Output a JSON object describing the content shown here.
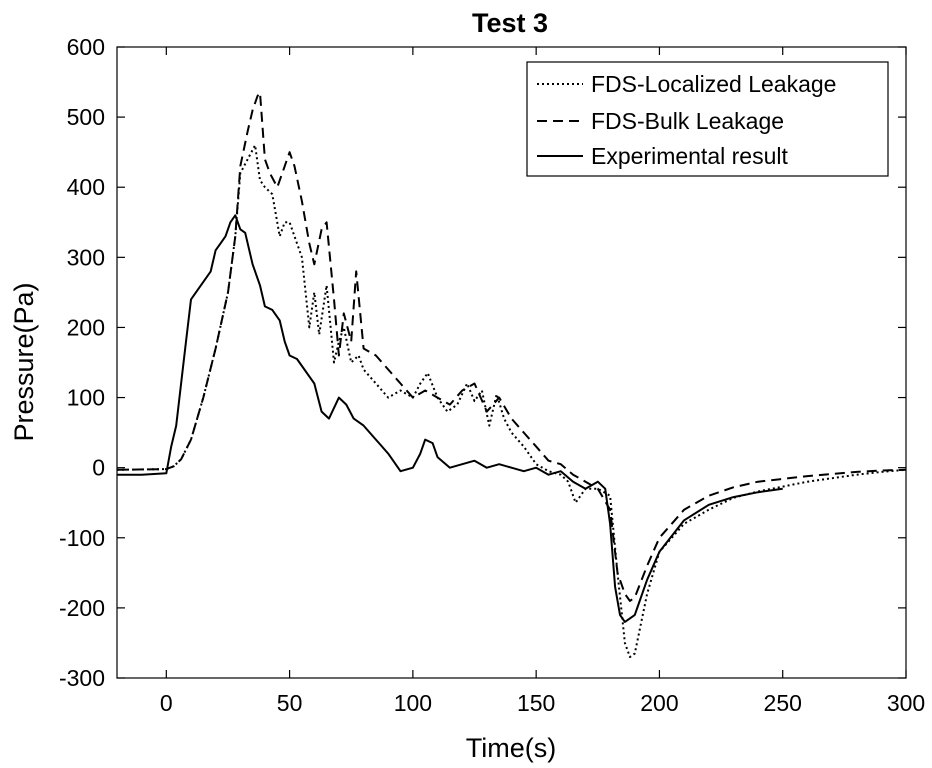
{
  "chart_data": {
    "type": "line",
    "title": "Test 3",
    "xlabel": "Time(s)",
    "ylabel": "Pressure(Pa)",
    "xlim": [
      -20,
      300
    ],
    "ylim": [
      -300,
      600
    ],
    "xticks": [
      0,
      50,
      100,
      150,
      200,
      250,
      300
    ],
    "yticks": [
      -300,
      -200,
      -100,
      0,
      100,
      200,
      300,
      400,
      500,
      600
    ],
    "grid": false,
    "legend_position": "top-right",
    "series": [
      {
        "name": "FDS-Localized Leakage",
        "style": "dotted",
        "color": "#000000",
        "x": [
          -20,
          0,
          3,
          6,
          10,
          15,
          20,
          25,
          28,
          30,
          33,
          36,
          38,
          40,
          43,
          46,
          48,
          50,
          52,
          55,
          58,
          60,
          62,
          65,
          68,
          70,
          72,
          75,
          78,
          80,
          85,
          90,
          95,
          100,
          103,
          106,
          110,
          114,
          118,
          122,
          125,
          128,
          131,
          134,
          137,
          140,
          145,
          150,
          155,
          160,
          163,
          166,
          170,
          175,
          180,
          183,
          186,
          188,
          190,
          195,
          200,
          210,
          220,
          230,
          240,
          250,
          260,
          270,
          280,
          290,
          300
        ],
        "y": [
          -3,
          -2,
          2,
          12,
          40,
          100,
          170,
          250,
          330,
          420,
          440,
          460,
          410,
          400,
          390,
          330,
          350,
          350,
          330,
          300,
          200,
          250,
          190,
          260,
          150,
          180,
          200,
          150,
          160,
          140,
          120,
          100,
          110,
          100,
          120,
          135,
          100,
          80,
          90,
          120,
          95,
          110,
          60,
          105,
          70,
          50,
          30,
          5,
          -5,
          -10,
          -20,
          -50,
          -30,
          -30,
          -40,
          -150,
          -250,
          -270,
          -265,
          -180,
          -120,
          -80,
          -60,
          -43,
          -34,
          -27,
          -20,
          -15,
          -10,
          -6,
          -3
        ]
      },
      {
        "name": "FDS-Bulk Leakage",
        "style": "dashed",
        "color": "#000000",
        "x": [
          -20,
          0,
          3,
          6,
          10,
          15,
          20,
          25,
          28,
          30,
          33,
          35,
          37,
          38,
          40,
          42,
          45,
          48,
          50,
          52,
          55,
          58,
          60,
          63,
          65,
          68,
          70,
          72,
          75,
          77,
          80,
          85,
          90,
          95,
          100,
          105,
          110,
          115,
          120,
          125,
          130,
          135,
          140,
          145,
          150,
          155,
          160,
          165,
          170,
          175,
          180,
          183,
          186,
          188,
          190,
          195,
          200,
          210,
          220,
          230,
          240,
          250,
          260,
          270,
          280,
          290,
          300
        ],
        "y": [
          -3,
          -2,
          2,
          12,
          40,
          100,
          170,
          250,
          330,
          430,
          480,
          510,
          530,
          535,
          440,
          420,
          400,
          430,
          450,
          430,
          380,
          320,
          290,
          340,
          350,
          240,
          160,
          220,
          180,
          280,
          170,
          160,
          140,
          120,
          100,
          110,
          100,
          90,
          110,
          120,
          80,
          100,
          70,
          50,
          30,
          10,
          5,
          -10,
          -20,
          -30,
          -60,
          -150,
          -180,
          -190,
          -185,
          -140,
          -100,
          -60,
          -40,
          -28,
          -20,
          -16,
          -12,
          -9,
          -6,
          -4,
          -3
        ]
      },
      {
        "name": "Experimental result",
        "style": "solid",
        "color": "#000000",
        "x": [
          -20,
          -10,
          0,
          2,
          4,
          6,
          8,
          10,
          12,
          15,
          18,
          20,
          22,
          24,
          26,
          28,
          30,
          32,
          35,
          38,
          40,
          43,
          46,
          48,
          50,
          53,
          56,
          60,
          63,
          66,
          70,
          73,
          76,
          80,
          85,
          90,
          95,
          100,
          103,
          105,
          108,
          110,
          115,
          120,
          125,
          130,
          135,
          140,
          145,
          150,
          155,
          160,
          165,
          170,
          175,
          178,
          180,
          182,
          184,
          186,
          188,
          190,
          195,
          200,
          210,
          220,
          230,
          240,
          250
        ],
        "y": [
          -10,
          -10,
          -8,
          30,
          60,
          120,
          180,
          240,
          250,
          265,
          280,
          310,
          320,
          330,
          350,
          360,
          340,
          335,
          290,
          260,
          230,
          225,
          210,
          180,
          160,
          155,
          140,
          120,
          80,
          70,
          100,
          90,
          70,
          60,
          40,
          20,
          -5,
          0,
          20,
          40,
          35,
          15,
          0,
          5,
          10,
          0,
          5,
          0,
          -5,
          0,
          -10,
          -5,
          -20,
          -30,
          -20,
          -30,
          -80,
          -170,
          -210,
          -220,
          -215,
          -210,
          -160,
          -120,
          -75,
          -53,
          -42,
          -35,
          -30
        ]
      }
    ]
  }
}
